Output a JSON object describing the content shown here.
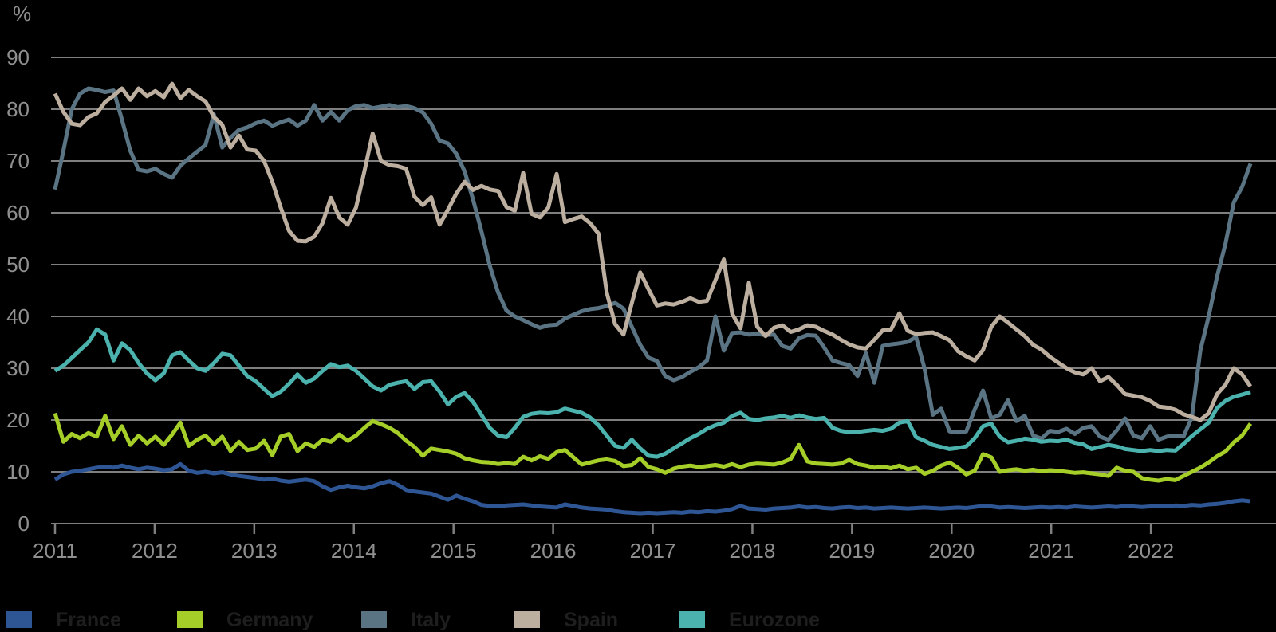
{
  "colors": {
    "background": "#000000",
    "gridline": "#7f7f7f",
    "axis_text": "#8f8f8f",
    "legend_text": "#1e1e1e"
  },
  "chart_data": {
    "type": "line",
    "unit_label": "%",
    "frequency": "monthly",
    "x_axis": {
      "start": "2011-01",
      "end": "2022-12",
      "tick_labels": [
        "2011",
        "2012",
        "2013",
        "2014",
        "2015",
        "2016",
        "2017",
        "2018",
        "2019",
        "2020",
        "2021",
        "2022"
      ]
    },
    "y_axis": {
      "min": 0,
      "max": 90,
      "tick_step": 10,
      "tick_labels": [
        "0",
        "10",
        "20",
        "30",
        "40",
        "50",
        "60",
        "70",
        "80",
        "90"
      ],
      "grid": true
    },
    "legend_position": "bottom",
    "series": [
      {
        "name": "France",
        "color": "#2e5695",
        "values": [
          8.5,
          9.5,
          10,
          10.2,
          10.5,
          10.8,
          11,
          10.8,
          11.2,
          10.8,
          10.5,
          10.8,
          10.6,
          10.3,
          10.5,
          11.5,
          10.2,
          9.8,
          10,
          9.7,
          9.9,
          9.5,
          9.2,
          9,
          8.8,
          8.5,
          8.7,
          8.3,
          8.1,
          8.3,
          8.5,
          8.2,
          7.2,
          6.5,
          7,
          7.3,
          7,
          6.8,
          7.2,
          7.8,
          8.2,
          7.5,
          6.5,
          6.2,
          6,
          5.8,
          5.2,
          4.6,
          5.4,
          4.8,
          4.3,
          3.6,
          3.4,
          3.3,
          3.5,
          3.6,
          3.7,
          3.5,
          3.3,
          3.2,
          3.1,
          3.7,
          3.4,
          3.1,
          2.9,
          2.8,
          2.7,
          2.4,
          2.2,
          2.1,
          2,
          2.1,
          2,
          2.1,
          2.2,
          2.1,
          2.3,
          2.2,
          2.4,
          2.3,
          2.5,
          2.8,
          3.4,
          2.9,
          2.8,
          2.7,
          2.9,
          3,
          3.1,
          3.3,
          3.1,
          3.2,
          3,
          2.9,
          3.1,
          3.2,
          3,
          3.1,
          2.9,
          3,
          3.1,
          3,
          2.9,
          3,
          3.1,
          3,
          2.9,
          3,
          3.1,
          3,
          3.2,
          3.4,
          3.3,
          3.1,
          3.2,
          3.1,
          3,
          3.1,
          3.2,
          3.1,
          3.2,
          3.1,
          3.3,
          3.2,
          3.1,
          3.2,
          3.3,
          3.2,
          3.4,
          3.3,
          3.2,
          3.3,
          3.4,
          3.3,
          3.5,
          3.4,
          3.6,
          3.5,
          3.7,
          3.8,
          4,
          4.3,
          4.5,
          4.3
        ]
      },
      {
        "name": "Germany",
        "color": "#a5ce28",
        "values": [
          21.3,
          15.8,
          17.3,
          16.5,
          17.5,
          16.8,
          20.8,
          16.3,
          18.8,
          15.2,
          17,
          15.5,
          16.8,
          15.2,
          17.2,
          19.5,
          15,
          16.2,
          17,
          15.3,
          16.8,
          14,
          15.8,
          14.2,
          14.5,
          16,
          13.2,
          16.8,
          17.3,
          14,
          15.5,
          14.8,
          16.2,
          15.8,
          17.2,
          16,
          17,
          18.5,
          19.8,
          19.2,
          18.5,
          17.5,
          16,
          14.8,
          13.1,
          14.5,
          14.2,
          13.9,
          13.5,
          12.6,
          12.2,
          11.9,
          11.8,
          11.5,
          11.7,
          11.5,
          12.9,
          12.2,
          13,
          12.5,
          13.8,
          14.2,
          12.8,
          11.4,
          11.8,
          12.2,
          12.4,
          12.1,
          11.1,
          11.3,
          12.6,
          10.9,
          10.5,
          9.8,
          10.6,
          11,
          11.2,
          10.9,
          11.1,
          11.3,
          11,
          11.5,
          10.9,
          11.4,
          11.6,
          11.5,
          11.4,
          11.8,
          12.5,
          15.2,
          12,
          11.6,
          11.5,
          11.4,
          11.6,
          12.3,
          11.5,
          11.2,
          10.8,
          11,
          10.7,
          11.2,
          10.5,
          10.8,
          9.6,
          10.2,
          11.2,
          11.8,
          10.8,
          9.5,
          10.2,
          13.4,
          12.8,
          10,
          10.3,
          10.5,
          10.2,
          10.4,
          10.1,
          10.3,
          10.2,
          10,
          9.8,
          9.9,
          9.7,
          9.5,
          9.2,
          10.8,
          10.2,
          10,
          8.8,
          8.5,
          8.3,
          8.6,
          8.4,
          9.2,
          10,
          10.8,
          11.8,
          13,
          13.9,
          15.7,
          17,
          19.3
        ]
      },
      {
        "name": "Italy",
        "color": "#5a7484",
        "values": [
          64.5,
          72,
          80,
          83,
          84,
          83.7,
          83.3,
          83.6,
          78,
          72,
          68.3,
          68,
          68.5,
          67.5,
          66.8,
          69.1,
          70.5,
          71.8,
          73.1,
          79,
          72.6,
          74.5,
          76,
          76.5,
          77.3,
          77.8,
          76.8,
          77.5,
          78,
          76.8,
          77.8,
          80.8,
          77.8,
          79.5,
          77.8,
          79.8,
          80.6,
          80.8,
          80.2,
          80.5,
          80.8,
          80.4,
          80.6,
          80.2,
          79.4,
          77.2,
          73.9,
          73.4,
          71.4,
          68,
          62.6,
          56.5,
          49.8,
          44.6,
          41.1,
          40,
          39.3,
          38.5,
          37.8,
          38.3,
          38.4,
          39.6,
          40.3,
          41,
          41.4,
          41.6,
          42,
          42.6,
          41.5,
          38,
          34.5,
          32,
          31.4,
          28.5,
          27.7,
          28.3,
          29.3,
          30.2,
          31.5,
          40,
          33.4,
          36.8,
          36.9,
          36.5,
          36.6,
          36.4,
          36.5,
          34.3,
          33.8,
          35.8,
          36.4,
          36.3,
          34,
          31.5,
          31,
          30.6,
          28.5,
          32.9,
          27.2,
          34.3,
          34.6,
          34.8,
          35.1,
          36,
          30,
          21,
          22.2,
          17.8,
          17.6,
          17.8,
          22,
          25.7,
          20.3,
          21,
          23.8,
          19.8,
          20.8,
          17,
          16.4,
          17.9,
          17.7,
          18.3,
          17.3,
          18.5,
          18.8,
          16.8,
          16.2,
          18,
          20.3,
          17,
          16.5,
          18.8,
          16.2,
          16.8,
          17,
          16.8,
          20.6,
          33.4,
          40,
          47.7,
          54,
          62,
          65,
          69.5
        ]
      },
      {
        "name": "Spain",
        "color": "#bdafa0",
        "values": [
          83,
          79.5,
          77.2,
          76.9,
          78.5,
          79.2,
          81.4,
          82.6,
          84,
          81.8,
          84,
          82.5,
          83.5,
          82.3,
          84.9,
          82.1,
          83.7,
          82.5,
          81.5,
          78.5,
          77,
          72.6,
          74.9,
          72.2,
          72,
          70,
          66,
          61,
          56.5,
          54.6,
          54.5,
          55.4,
          58,
          62.9,
          59.1,
          57.7,
          61,
          68,
          75.3,
          70,
          69.2,
          69,
          68.5,
          63.1,
          61.5,
          63,
          57.7,
          60.6,
          63.7,
          66,
          64.4,
          65.2,
          64.5,
          64.2,
          61.1,
          60.4,
          67.7,
          59.8,
          59.1,
          61,
          67.5,
          58.2,
          58.8,
          59.3,
          58,
          56,
          44.6,
          38.5,
          36.5,
          42.6,
          48.5,
          45.2,
          42.1,
          42.5,
          42.3,
          42.8,
          43.5,
          42.8,
          43,
          47,
          51,
          40.5,
          37.7,
          46.5,
          38,
          36.2,
          37.8,
          38.3,
          37,
          37.5,
          38.3,
          38,
          37.2,
          36.5,
          35.5,
          34.6,
          34,
          33.8,
          35.5,
          37.3,
          37.5,
          40.6,
          37.2,
          36.6,
          36.8,
          36.9,
          36.2,
          35.4,
          33.3,
          32.3,
          31.5,
          33.5,
          38,
          40,
          38.8,
          37.5,
          36.2,
          34.5,
          33.6,
          32.2,
          31.1,
          30,
          29.2,
          28.8,
          30,
          27.5,
          28.3,
          26.8,
          25,
          24.7,
          24.4,
          23.7,
          22.6,
          22.4,
          22,
          21.1,
          20.6,
          20,
          21.3,
          25,
          26.8,
          30,
          28.8,
          26.5
        ]
      },
      {
        "name": "Eurozone",
        "color": "#4bb2ad",
        "values": [
          29.5,
          30.5,
          32,
          33.5,
          35,
          37.5,
          36.5,
          31.5,
          34.8,
          33.5,
          31,
          29,
          27.7,
          29,
          32.5,
          33.1,
          31.5,
          30,
          29.5,
          31,
          32.8,
          32.5,
          30.5,
          28.5,
          27.5,
          26,
          24.6,
          25.5,
          27,
          28.8,
          27.2,
          28,
          29.5,
          30.8,
          30.2,
          30.5,
          29.5,
          28,
          26.5,
          25.7,
          26.8,
          27.2,
          27.5,
          26,
          27.3,
          27.5,
          25.5,
          23,
          24.5,
          25.2,
          23.5,
          21,
          18.5,
          17,
          16.7,
          18.5,
          20.6,
          21.2,
          21.4,
          21.3,
          21.5,
          22.2,
          21.8,
          21.4,
          20.5,
          19,
          17,
          15,
          14.6,
          16.2,
          14.5,
          13.1,
          12.9,
          13.5,
          14.5,
          15.5,
          16.5,
          17.3,
          18.3,
          19,
          19.5,
          20.8,
          21.4,
          20.2,
          20,
          20.3,
          20.5,
          20.8,
          20.4,
          20.9,
          20.5,
          20.2,
          20.4,
          18.5,
          17.9,
          17.6,
          17.7,
          17.9,
          18.1,
          17.9,
          18.3,
          19.5,
          19.8,
          16.7,
          16,
          15.2,
          14.8,
          14.4,
          14.6,
          14.9,
          16.5,
          18.8,
          19.3,
          16.8,
          15.7,
          16,
          16.4,
          16.2,
          15.8,
          16,
          15.9,
          16.2,
          15.6,
          15.3,
          14.4,
          14.8,
          15.2,
          14.9,
          14.4,
          14.2,
          14,
          14.2,
          14,
          14.2,
          14.1,
          15.4,
          16.9,
          18.2,
          19.5,
          22.3,
          23.7,
          24.5,
          24.9,
          25.4
        ]
      }
    ]
  },
  "legend": {
    "items": [
      {
        "label": "France",
        "color": "#2e5695"
      },
      {
        "label": "Germany",
        "color": "#a5ce28"
      },
      {
        "label": "Italy",
        "color": "#5a7484"
      },
      {
        "label": "Spain",
        "color": "#bdafa0"
      },
      {
        "label": "Eurozone",
        "color": "#4bb2ad"
      }
    ]
  }
}
